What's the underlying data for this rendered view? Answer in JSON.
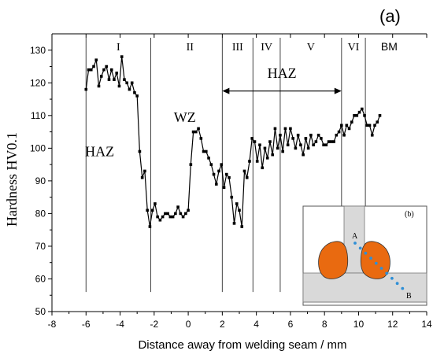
{
  "panel_label": "(a)",
  "inset": {
    "label": "(b)",
    "point_a": "A",
    "point_b": "B",
    "colors": {
      "zone": "#e96a10",
      "plate": "#d9d9d9",
      "dots": "#2f8fd6"
    }
  },
  "chart_data": {
    "type": "line",
    "xlabel": "Distance away from welding seam / mm",
    "ylabel": "Hardness HV0.1",
    "xlim": [
      -8,
      14
    ],
    "ylim": [
      50,
      135
    ],
    "x_ticks": [
      -8,
      -6,
      -4,
      -2,
      0,
      2,
      4,
      6,
      8,
      10,
      12,
      14
    ],
    "y_ticks": [
      50,
      60,
      70,
      80,
      90,
      100,
      110,
      120,
      130
    ],
    "grid": false,
    "zone_boundaries": [
      -6,
      -2.2,
      2,
      3.8,
      5.4,
      9,
      10.4
    ],
    "zone_labels": [
      {
        "text": "I",
        "x": -4.1,
        "y": 130
      },
      {
        "text": "II",
        "x": 0.1,
        "y": 130
      },
      {
        "text": "III",
        "x": 2.9,
        "y": 130
      },
      {
        "text": "IV",
        "x": 4.6,
        "y": 130
      },
      {
        "text": "V",
        "x": 7.2,
        "y": 130
      },
      {
        "text": "VI",
        "x": 9.7,
        "y": 130
      },
      {
        "text": "BM",
        "x": 11.8,
        "y": 130
      }
    ],
    "annotations": [
      {
        "text": "HAZ",
        "x": 5.5,
        "y": 121.5
      },
      {
        "text": "WZ",
        "x": -0.2,
        "y": 108
      },
      {
        "text": "HAZ",
        "x": -5.2,
        "y": 97.5
      }
    ],
    "haz_arrow": {
      "x_start": 2,
      "x_end": 9,
      "y": 117.5
    },
    "series": [
      {
        "x": [
          -6.0,
          -5.85,
          -5.7,
          -5.55,
          -5.4,
          -5.25,
          -5.1,
          -4.95,
          -4.8,
          -4.65,
          -4.5,
          -4.35,
          -4.2,
          -4.05,
          -3.9,
          -3.75,
          -3.6,
          -3.45,
          -3.3,
          -3.15,
          -3.0,
          -2.85,
          -2.7,
          -2.55,
          -2.4,
          -2.25,
          -2.1,
          -1.95,
          -1.8,
          -1.65,
          -1.5,
          -1.35,
          -1.2,
          -1.05,
          -0.9,
          -0.75,
          -0.6,
          -0.45,
          -0.3,
          -0.15,
          0.0,
          0.15,
          0.3,
          0.45,
          0.6,
          0.75,
          0.9,
          1.05,
          1.2,
          1.35,
          1.5,
          1.65,
          1.8,
          1.95,
          2.1,
          2.25,
          2.4,
          2.55,
          2.7,
          2.85,
          3.0,
          3.15,
          3.3,
          3.45,
          3.6,
          3.75,
          3.9,
          4.05,
          4.2,
          4.35,
          4.5,
          4.65,
          4.8,
          4.95,
          5.1,
          5.25,
          5.4,
          5.55,
          5.7,
          5.85,
          6.0,
          6.15,
          6.3,
          6.45,
          6.6,
          6.75,
          6.9,
          7.05,
          7.2,
          7.35,
          7.5,
          7.65,
          7.8,
          7.95,
          8.1,
          8.25,
          8.4,
          8.55,
          8.7,
          8.85,
          9.0,
          9.15,
          9.3,
          9.45,
          9.6,
          9.75,
          9.9,
          10.05,
          10.2,
          10.35,
          10.5,
          10.65,
          10.8,
          10.95,
          11.1,
          11.25
        ],
        "values": [
          118,
          124,
          124,
          125,
          127,
          119,
          122,
          124,
          125,
          121,
          124,
          121,
          123,
          119,
          128,
          121,
          120,
          118,
          120,
          117,
          116,
          99,
          91,
          93,
          81,
          76,
          81,
          83,
          79,
          78,
          79,
          80,
          80,
          79,
          79,
          80,
          82,
          80,
          79,
          80,
          81,
          95,
          105,
          105,
          106,
          103,
          99,
          99,
          97,
          95,
          92,
          89,
          93,
          95,
          88,
          92,
          91,
          85,
          77,
          83,
          81,
          76,
          93,
          91,
          96,
          103,
          102,
          96,
          101,
          94,
          100,
          97,
          102,
          98,
          106,
          100,
          104,
          99,
          106,
          101,
          106,
          103,
          100,
          104,
          101,
          98,
          103,
          100,
          104,
          101,
          102,
          104,
          103,
          101,
          101,
          102,
          102,
          102,
          104,
          105,
          107,
          104,
          107,
          106,
          108,
          110,
          110,
          111,
          112,
          110,
          107,
          107,
          104,
          107,
          108,
          110
        ]
      }
    ]
  }
}
